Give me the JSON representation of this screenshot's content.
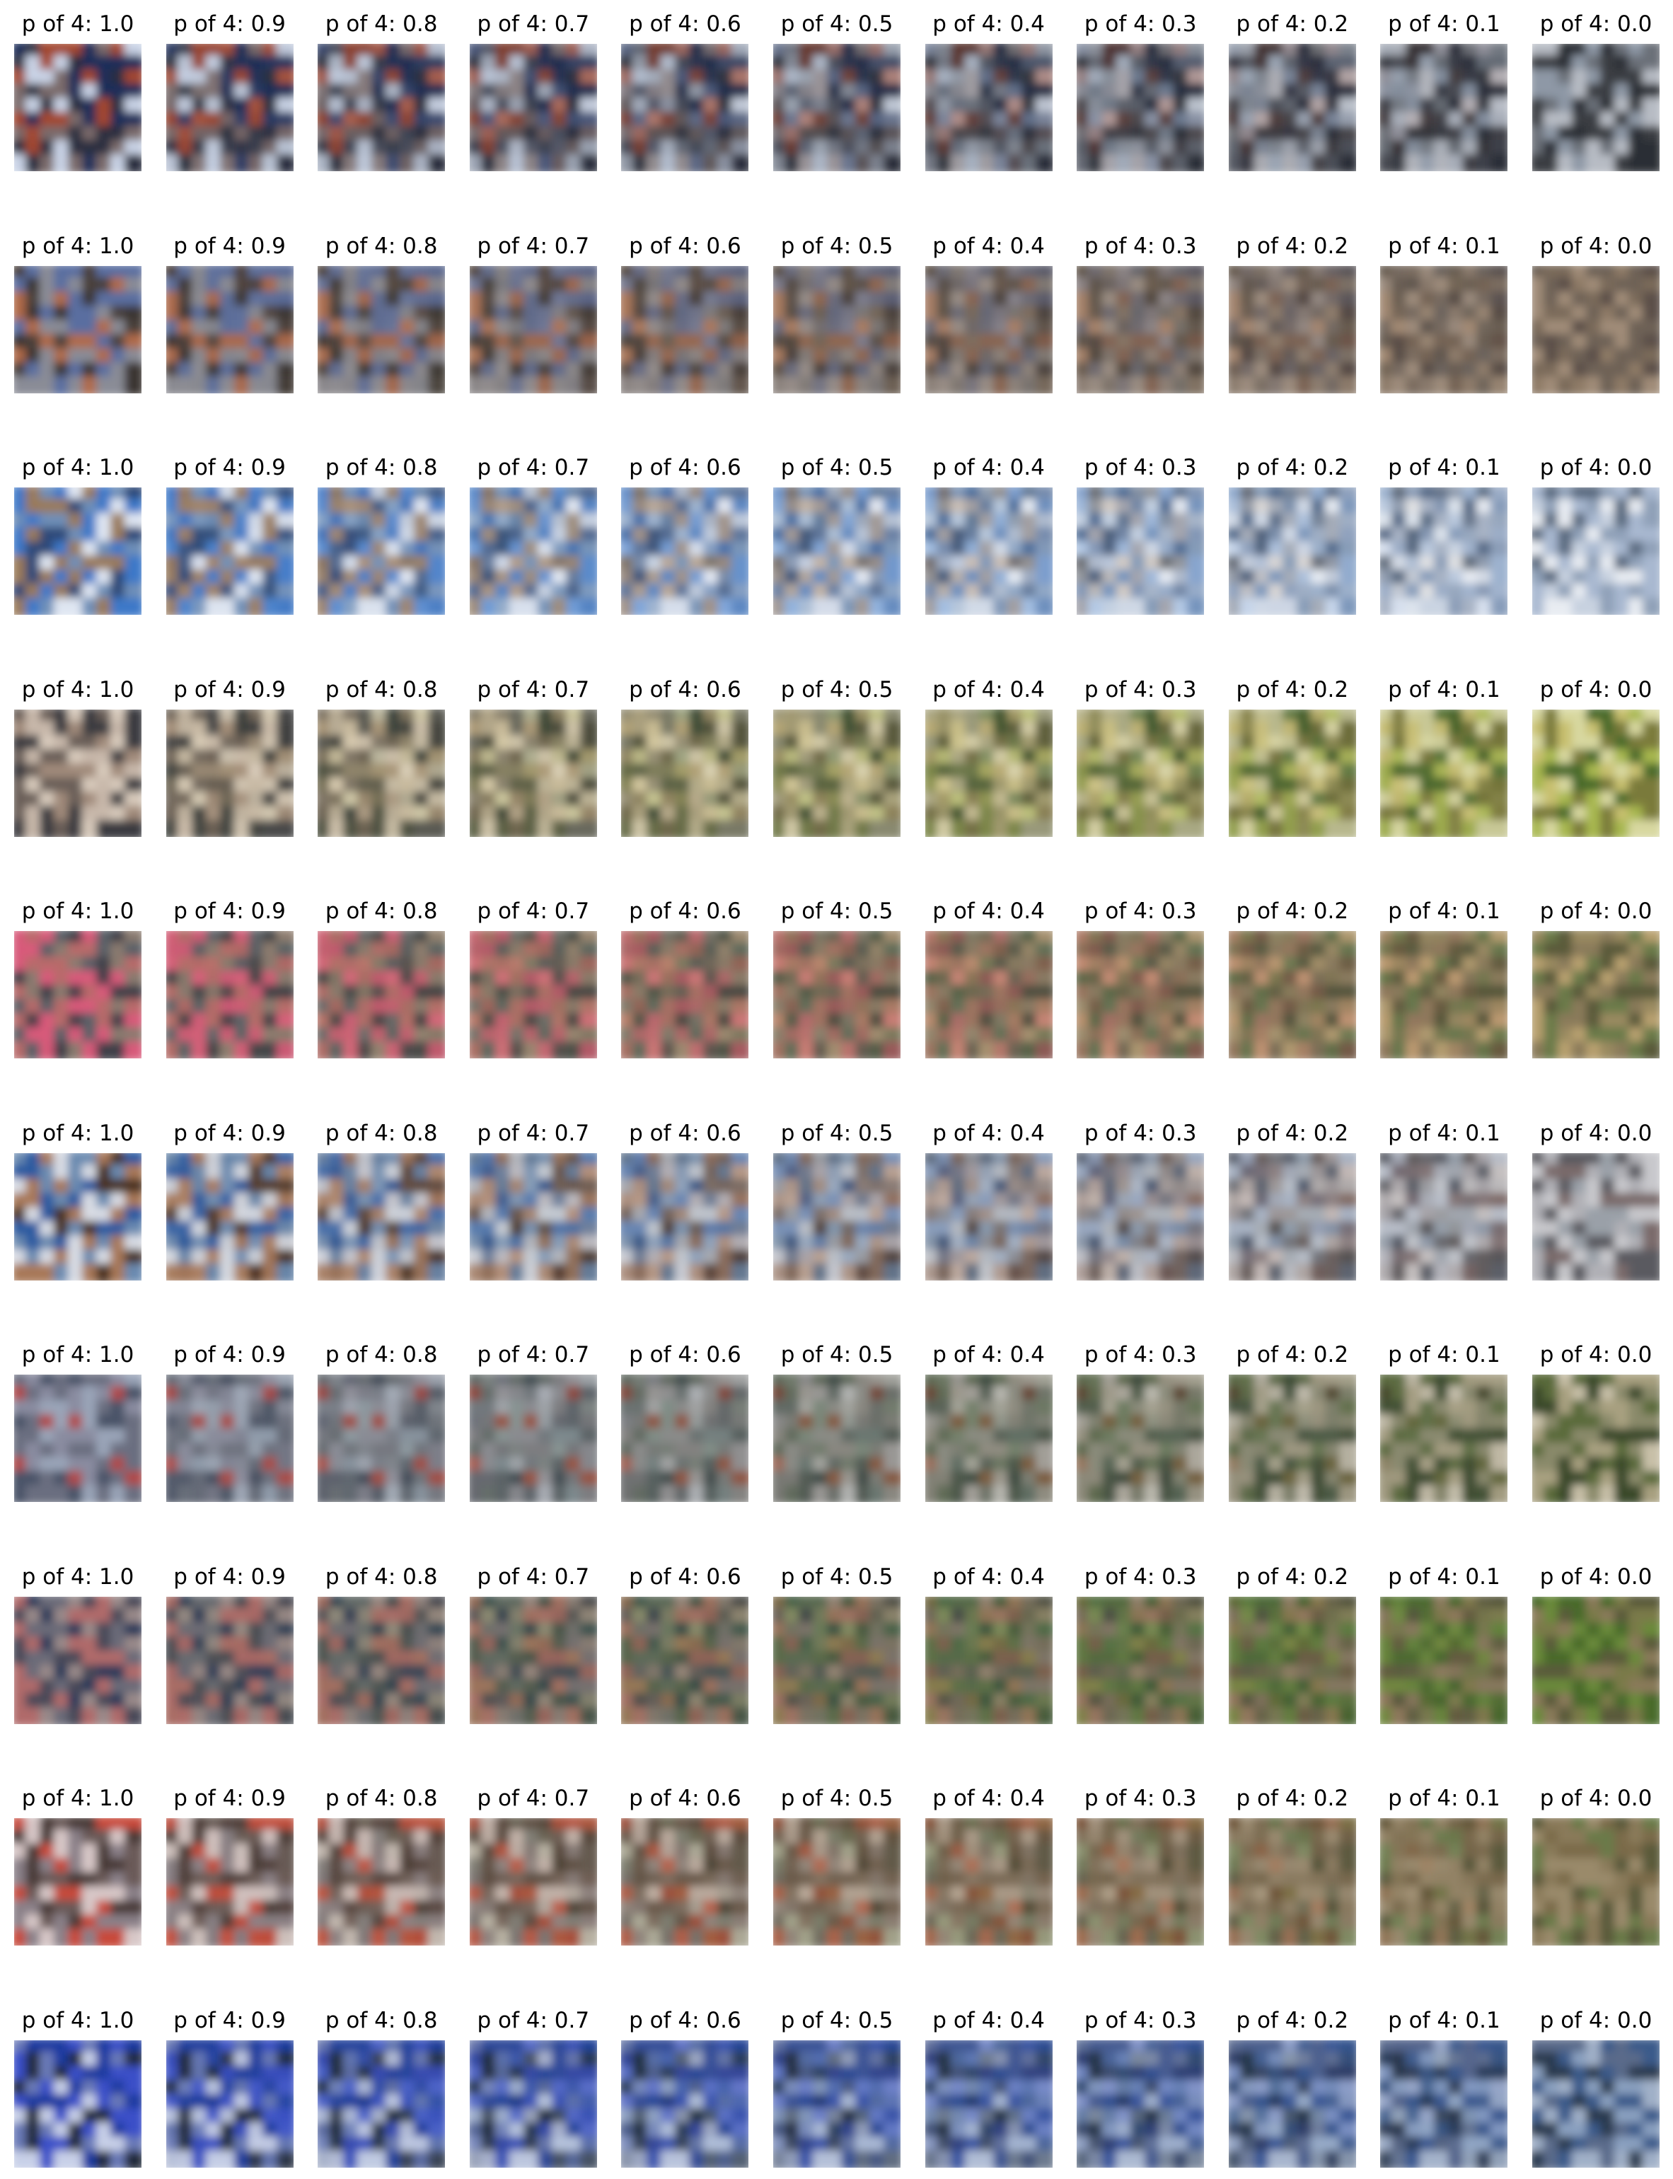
{
  "row_palettes": [
    {
      "start": [
        "#1e2f5a",
        "#c9d3e6",
        "#2a2f40",
        "#7a6a6a",
        "#a3472f"
      ],
      "end": [
        "#3a3c42",
        "#8e98a6",
        "#2c2f36",
        "#6b7078",
        "#b7bcc4"
      ]
    },
    {
      "start": [
        "#5a6ea0",
        "#4a3f3a",
        "#b06a4a",
        "#8a8c96",
        "#3a3432"
      ],
      "end": [
        "#7a6a5a",
        "#5c5048",
        "#8e7a66",
        "#6e6256",
        "#a08c78"
      ]
    },
    {
      "start": [
        "#3c78c8",
        "#dfe6f2",
        "#6e8fb8",
        "#9a7a5a",
        "#2e4a78"
      ],
      "end": [
        "#a8b8d0",
        "#e8ecf2",
        "#8fa0b8",
        "#5a6a80",
        "#c8d2e0"
      ]
    },
    {
      "start": [
        "#3a3a40",
        "#a08a7a",
        "#c8b8aa",
        "#6a5e58",
        "#d8cabc"
      ],
      "end": [
        "#4a6a2a",
        "#a8b850",
        "#d8d8a0",
        "#7a7a3a",
        "#c8c070"
      ]
    },
    {
      "start": [
        "#b86a6a",
        "#5a6068",
        "#d85a7a",
        "#8a7a70",
        "#404048"
      ],
      "end": [
        "#8a7a5a",
        "#9a8a60",
        "#6a7a4a",
        "#b8a070",
        "#5a5a3a"
      ]
    },
    {
      "start": [
        "#2a5aa0",
        "#d8dce4",
        "#4a3020",
        "#6a8ab0",
        "#a87858"
      ],
      "end": [
        "#9aa0a8",
        "#c8c8cc",
        "#5a5a60",
        "#7a6a6a",
        "#b0b0b6"
      ]
    },
    {
      "start": [
        "#4a5268",
        "#8a8ca0",
        "#b04a4a",
        "#6a6e80",
        "#9aa4b8"
      ],
      "end": [
        "#5a6a3a",
        "#a8a080",
        "#3a4a2a",
        "#8a8a6a",
        "#c8c0a8"
      ]
    },
    {
      "start": [
        "#2a3a5a",
        "#9a8a8a",
        "#b06a6a",
        "#6a6a78",
        "#4a4a58"
      ],
      "end": [
        "#5a5a3a",
        "#7a7a4a",
        "#4a6a2a",
        "#8a7a5a",
        "#6a8a3a"
      ]
    },
    {
      "start": [
        "#6a5a58",
        "#d8c8c8",
        "#c84a3a",
        "#8a8088",
        "#4a3a38"
      ],
      "end": [
        "#7a6a4a",
        "#8a7a5a",
        "#6a7a4a",
        "#9a8a6a",
        "#5a5a3a"
      ]
    },
    {
      "start": [
        "#1a3aa0",
        "#c8d0e8",
        "#3a50c8",
        "#202a3a",
        "#6a7ab8"
      ],
      "end": [
        "#3a5a8a",
        "#8aa0c0",
        "#2a3a50",
        "#5a6a8a",
        "#a0b0c8"
      ]
    }
  ],
  "rows": [
    [
      "p of 4: 1.0",
      "p of 4: 0.9",
      "p of 4: 0.8",
      "p of 4: 0.7",
      "p of 4: 0.6",
      "p of 4: 0.5",
      "p of 4: 0.4",
      "p of 4: 0.3",
      "p of 4: 0.2",
      "p of 4: 0.1",
      "p of 4: 0.0"
    ],
    [
      "p of 4: 1.0",
      "p of 4: 0.9",
      "p of 4: 0.8",
      "p of 4: 0.7",
      "p of 4: 0.6",
      "p of 4: 0.5",
      "p of 4: 0.4",
      "p of 4: 0.3",
      "p of 4: 0.2",
      "p of 4: 0.1",
      "p of 4: 0.0"
    ],
    [
      "p of 4: 1.0",
      "p of 4: 0.9",
      "p of 4: 0.8",
      "p of 4: 0.7",
      "p of 4: 0.6",
      "p of 4: 0.5",
      "p of 4: 0.4",
      "p of 4: 0.3",
      "p of 4: 0.2",
      "p of 4: 0.1",
      "p of 4: 0.0"
    ],
    [
      "p of 4: 1.0",
      "p of 4: 0.9",
      "p of 4: 0.8",
      "p of 4: 0.7",
      "p of 4: 0.6",
      "p of 4: 0.5",
      "p of 4: 0.4",
      "p of 4: 0.3",
      "p of 4: 0.2",
      "p of 4: 0.1",
      "p of 4: 0.0"
    ],
    [
      "p of 4: 1.0",
      "p of 4: 0.9",
      "p of 4: 0.8",
      "p of 4: 0.7",
      "p of 4: 0.6",
      "p of 4: 0.5",
      "p of 4: 0.4",
      "p of 4: 0.3",
      "p of 4: 0.2",
      "p of 4: 0.1",
      "p of 4: 0.0"
    ],
    [
      "p of 4: 1.0",
      "p of 4: 0.9",
      "p of 4: 0.8",
      "p of 4: 0.7",
      "p of 4: 0.6",
      "p of 4: 0.5",
      "p of 4: 0.4",
      "p of 4: 0.3",
      "p of 4: 0.2",
      "p of 4: 0.1",
      "p of 4: 0.0"
    ],
    [
      "p of 4: 1.0",
      "p of 4: 0.9",
      "p of 4: 0.8",
      "p of 4: 0.7",
      "p of 4: 0.6",
      "p of 4: 0.5",
      "p of 4: 0.4",
      "p of 4: 0.3",
      "p of 4: 0.2",
      "p of 4: 0.1",
      "p of 4: 0.0"
    ],
    [
      "p of 4: 1.0",
      "p of 4: 0.9",
      "p of 4: 0.8",
      "p of 4: 0.7",
      "p of 4: 0.6",
      "p of 4: 0.5",
      "p of 4: 0.4",
      "p of 4: 0.3",
      "p of 4: 0.2",
      "p of 4: 0.1",
      "p of 4: 0.0"
    ],
    [
      "p of 4: 1.0",
      "p of 4: 0.9",
      "p of 4: 0.8",
      "p of 4: 0.7",
      "p of 4: 0.6",
      "p of 4: 0.5",
      "p of 4: 0.4",
      "p of 4: 0.3",
      "p of 4: 0.2",
      "p of 4: 0.1",
      "p of 4: 0.0"
    ],
    [
      "p of 4: 1.0",
      "p of 4: 0.9",
      "p of 4: 0.8",
      "p of 4: 0.7",
      "p of 4: 0.6",
      "p of 4: 0.5",
      "p of 4: 0.4",
      "p of 4: 0.3",
      "p of 4: 0.2",
      "p of 4: 0.1",
      "p of 4: 0.0"
    ]
  ]
}
